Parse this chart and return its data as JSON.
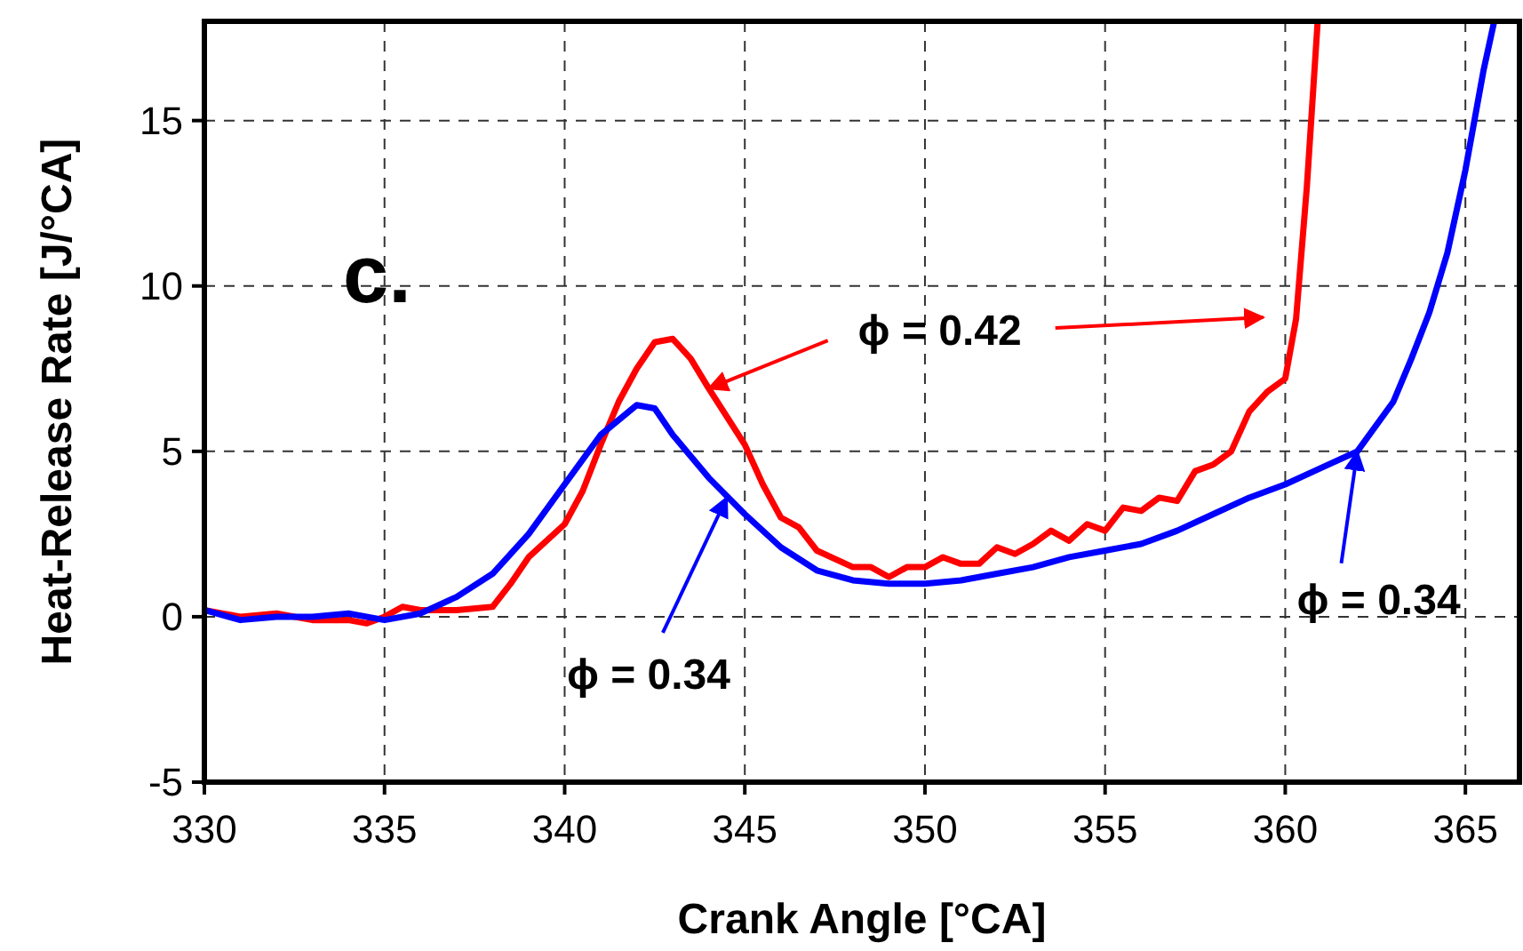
{
  "chart_data": {
    "type": "line",
    "xlabel": "Crank Angle [°CA]",
    "ylabel": "Heat-Release Rate [J/°CA]",
    "xlim": [
      330,
      366.5
    ],
    "xticks": [
      330,
      335,
      340,
      345,
      350,
      355,
      360,
      365
    ],
    "ylim": [
      -5,
      18
    ],
    "yticks": [
      -5,
      0,
      5,
      10,
      15
    ],
    "grid": true,
    "marker": "none",
    "line_style": "solid",
    "series": [
      {
        "color": "#ff0000",
        "x": [
          330,
          331,
          332,
          333,
          334,
          334.5,
          335,
          335.5,
          336,
          337,
          338,
          338.5,
          339,
          340,
          340.5,
          341,
          341.5,
          342,
          342.5,
          343,
          343.5,
          344,
          345,
          345.5,
          346,
          346.5,
          347,
          348,
          348.5,
          349,
          349.5,
          350,
          350.5,
          351,
          351.5,
          352,
          352.5,
          353,
          353.5,
          354,
          354.5,
          355,
          355.5,
          356,
          356.5,
          357,
          357.5,
          358,
          358.5,
          359,
          359.5,
          360,
          360.3,
          360.6,
          360.9
        ],
        "values": [
          0.2,
          0,
          0.1,
          -0.1,
          -0.1,
          -0.2,
          0,
          0.3,
          0.2,
          0.2,
          0.3,
          1,
          1.8,
          2.8,
          3.8,
          5.2,
          6.5,
          7.5,
          8.3,
          8.4,
          7.8,
          6.9,
          5.2,
          4,
          3,
          2.7,
          2,
          1.5,
          1.5,
          1.2,
          1.5,
          1.5,
          1.8,
          1.6,
          1.6,
          2.1,
          1.9,
          2.2,
          2.6,
          2.3,
          2.8,
          2.6,
          3.3,
          3.2,
          3.6,
          3.5,
          4.4,
          4.6,
          5,
          6.2,
          6.8,
          7.2,
          9,
          13,
          18
        ]
      },
      {
        "color": "#0000ff",
        "x": [
          330,
          331,
          332,
          333,
          334,
          335,
          336,
          337,
          338,
          339,
          340,
          341,
          342,
          342.5,
          343,
          344,
          345,
          346,
          347,
          348,
          349,
          350,
          351,
          352,
          353,
          354,
          355,
          356,
          357,
          358,
          359,
          360,
          361,
          362,
          363,
          363.5,
          364,
          364.5,
          365,
          365.5,
          365.8
        ],
        "values": [
          0.2,
          -0.1,
          0,
          0,
          0.1,
          -0.1,
          0.1,
          0.6,
          1.3,
          2.5,
          4,
          5.5,
          6.4,
          6.3,
          5.5,
          4.2,
          3.1,
          2.1,
          1.4,
          1.1,
          1,
          1,
          1.1,
          1.3,
          1.5,
          1.8,
          2,
          2.2,
          2.6,
          3.1,
          3.6,
          4,
          4.5,
          5,
          6.5,
          7.8,
          9.2,
          11,
          13.5,
          16.5,
          18
        ]
      }
    ],
    "annotations": [
      "c.",
      {
        "text": "ϕ = 0.42",
        "x": 344,
        "y": 6.9
      },
      {
        "text": "ϕ = 0.34",
        "x": 344.5,
        "y": 3.6
      },
      {
        "text": "ϕ = 0.34",
        "x": 362,
        "y": 5
      }
    ]
  }
}
